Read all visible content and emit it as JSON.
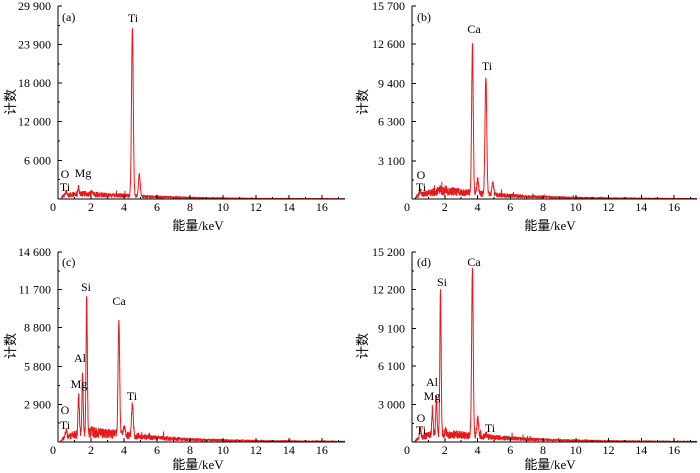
{
  "chart_data": [
    {
      "panel": "(a)",
      "type": "line",
      "xlabel": "能量/keV",
      "ylabel": "计数",
      "xlim": [
        0,
        17.4
      ],
      "ylim": [
        0,
        29900
      ],
      "grid": false,
      "x_ticks": [
        0,
        2,
        4,
        6,
        8,
        10,
        12,
        14,
        16
      ],
      "x_tick_labels": [
        "0",
        "2",
        "4",
        "6",
        "8",
        "10",
        "12",
        "14",
        "16"
      ],
      "y_ticks": [
        6000,
        12000,
        18000,
        23900,
        29900
      ],
      "y_tick_labels": [
        "6 000",
        "12 000",
        "18 000",
        "23 900",
        "29 900"
      ],
      "series": [
        {
          "color": "#e41a1c",
          "peaks": [
            {
              "x": 0.45,
              "y": 1000
            },
            {
              "x": 0.525,
              "y": 1100
            },
            {
              "x": 1.25,
              "y": 1900
            },
            {
              "x": 2.05,
              "y": 1000
            },
            {
              "x": 4.51,
              "y": 26600
            },
            {
              "x": 4.93,
              "y": 3800
            }
          ],
          "background": [
            [
              0.15,
              0
            ],
            [
              0.3,
              450
            ],
            [
              0.8,
              700
            ],
            [
              1.5,
              800
            ],
            [
              2.5,
              650
            ],
            [
              3.5,
              550
            ],
            [
              4.2,
              500
            ],
            [
              5.5,
              350
            ],
            [
              7,
              250
            ],
            [
              9,
              150
            ],
            [
              12,
              80
            ],
            [
              17.4,
              40
            ]
          ]
        }
      ],
      "annotations": [
        {
          "text": "Ti"
        },
        {
          "text": "O"
        },
        {
          "text": "Ti"
        },
        {
          "text": "Mg"
        }
      ]
    },
    {
      "panel": "(b)",
      "type": "line",
      "xlabel": "能量/keV",
      "ylabel": "计数",
      "xlim": [
        0,
        17.4
      ],
      "ylim": [
        0,
        15700
      ],
      "grid": false,
      "x_ticks": [
        0,
        2,
        4,
        6,
        8,
        10,
        12,
        14,
        16
      ],
      "x_tick_labels": [
        "0",
        "2",
        "4",
        "6",
        "8",
        "10",
        "12",
        "14",
        "16"
      ],
      "y_ticks": [
        3100,
        6300,
        9400,
        12600,
        15700
      ],
      "y_tick_labels": [
        "3 100",
        "6 300",
        "9 400",
        "12 600",
        "15 700"
      ],
      "series": [
        {
          "color": "#e41a1c",
          "peaks": [
            {
              "x": 0.45,
              "y": 500
            },
            {
              "x": 0.525,
              "y": 650
            },
            {
              "x": 1.74,
              "y": 900
            },
            {
              "x": 2.05,
              "y": 850
            },
            {
              "x": 3.69,
              "y": 12500
            },
            {
              "x": 4.01,
              "y": 1600
            },
            {
              "x": 4.51,
              "y": 10000
            },
            {
              "x": 4.93,
              "y": 1300
            }
          ],
          "background": [
            [
              0.15,
              0
            ],
            [
              0.3,
              250
            ],
            [
              0.8,
              420
            ],
            [
              1.5,
              600
            ],
            [
              2.5,
              600
            ],
            [
              3.5,
              500
            ],
            [
              4.2,
              450
            ],
            [
              5.5,
              300
            ],
            [
              7,
              200
            ],
            [
              9,
              130
            ],
            [
              12,
              70
            ],
            [
              17.4,
              30
            ]
          ]
        }
      ],
      "annotations": [
        {
          "text": "Ca"
        },
        {
          "text": "Ti"
        },
        {
          "text": "O"
        },
        {
          "text": "Ti"
        }
      ]
    },
    {
      "panel": "(c)",
      "type": "line",
      "xlabel": "能量/keV",
      "ylabel": "计数",
      "xlim": [
        0,
        17.4
      ],
      "ylim": [
        0,
        14600
      ],
      "grid": false,
      "x_ticks": [
        0,
        2,
        4,
        6,
        8,
        10,
        12,
        14,
        16
      ],
      "x_tick_labels": [
        "0",
        "2",
        "4",
        "6",
        "8",
        "10",
        "12",
        "14",
        "16"
      ],
      "y_ticks": [
        2900,
        5800,
        8800,
        11700,
        14600
      ],
      "y_tick_labels": [
        "2 900",
        "5 800",
        "8 800",
        "11 700",
        "14 600"
      ],
      "series": [
        {
          "color": "#e41a1c",
          "peaks": [
            {
              "x": 0.45,
              "y": 700
            },
            {
              "x": 0.525,
              "y": 900
            },
            {
              "x": 1.25,
              "y": 3800
            },
            {
              "x": 1.49,
              "y": 5200
            },
            {
              "x": 1.74,
              "y": 11200
            },
            {
              "x": 2.05,
              "y": 1000
            },
            {
              "x": 3.69,
              "y": 9300
            },
            {
              "x": 4.01,
              "y": 1250
            },
            {
              "x": 4.51,
              "y": 2850
            },
            {
              "x": 4.93,
              "y": 550
            }
          ],
          "background": [
            [
              0.15,
              0
            ],
            [
              0.3,
              250
            ],
            [
              0.8,
              500
            ],
            [
              1.5,
              700
            ],
            [
              2.5,
              720
            ],
            [
              3.5,
              600
            ],
            [
              4.2,
              500
            ],
            [
              5.5,
              350
            ],
            [
              7,
              250
            ],
            [
              9,
              150
            ],
            [
              12,
              90
            ],
            [
              17.4,
              40
            ]
          ]
        }
      ],
      "annotations": [
        {
          "text": "Si"
        },
        {
          "text": "Ca"
        },
        {
          "text": "Al"
        },
        {
          "text": "Mg"
        },
        {
          "text": "Ti"
        },
        {
          "text": "O"
        },
        {
          "text": "Ti"
        }
      ]
    },
    {
      "panel": "(d)",
      "type": "line",
      "xlabel": "能量/keV",
      "ylabel": "计数",
      "xlim": [
        0,
        17.4
      ],
      "ylim": [
        0,
        15200
      ],
      "grid": false,
      "x_ticks": [
        0,
        2,
        4,
        6,
        8,
        10,
        12,
        14,
        16
      ],
      "x_tick_labels": [
        "0",
        "2",
        "4",
        "6",
        "8",
        "10",
        "12",
        "14",
        "16"
      ],
      "y_ticks": [
        3000,
        6100,
        9100,
        12200,
        15200
      ],
      "y_tick_labels": [
        "3 000",
        "6 100",
        "9 100",
        "12 200",
        "15 200"
      ],
      "series": [
        {
          "color": "#e41a1c",
          "peaks": [
            {
              "x": 0.45,
              "y": 600
            },
            {
              "x": 0.525,
              "y": 1000
            },
            {
              "x": 1.25,
              "y": 2700
            },
            {
              "x": 1.49,
              "y": 3750
            },
            {
              "x": 1.74,
              "y": 12300
            },
            {
              "x": 2.05,
              "y": 900
            },
            {
              "x": 3.69,
              "y": 13800
            },
            {
              "x": 4.01,
              "y": 1900
            },
            {
              "x": 4.51,
              "y": 650
            },
            {
              "x": 4.93,
              "y": 350
            }
          ],
          "background": [
            [
              0.15,
              0
            ],
            [
              0.3,
              250
            ],
            [
              0.8,
              480
            ],
            [
              1.5,
              650
            ],
            [
              2.5,
              600
            ],
            [
              3.5,
              500
            ],
            [
              4.2,
              450
            ],
            [
              5.5,
              320
            ],
            [
              7,
              220
            ],
            [
              9,
              140
            ],
            [
              12,
              80
            ],
            [
              17.4,
              40
            ]
          ]
        }
      ],
      "annotations": [
        {
          "text": "Ca"
        },
        {
          "text": "Si"
        },
        {
          "text": "Al"
        },
        {
          "text": "Mg"
        },
        {
          "text": "O"
        },
        {
          "text": "Ti"
        },
        {
          "text": "Ti"
        }
      ]
    }
  ]
}
